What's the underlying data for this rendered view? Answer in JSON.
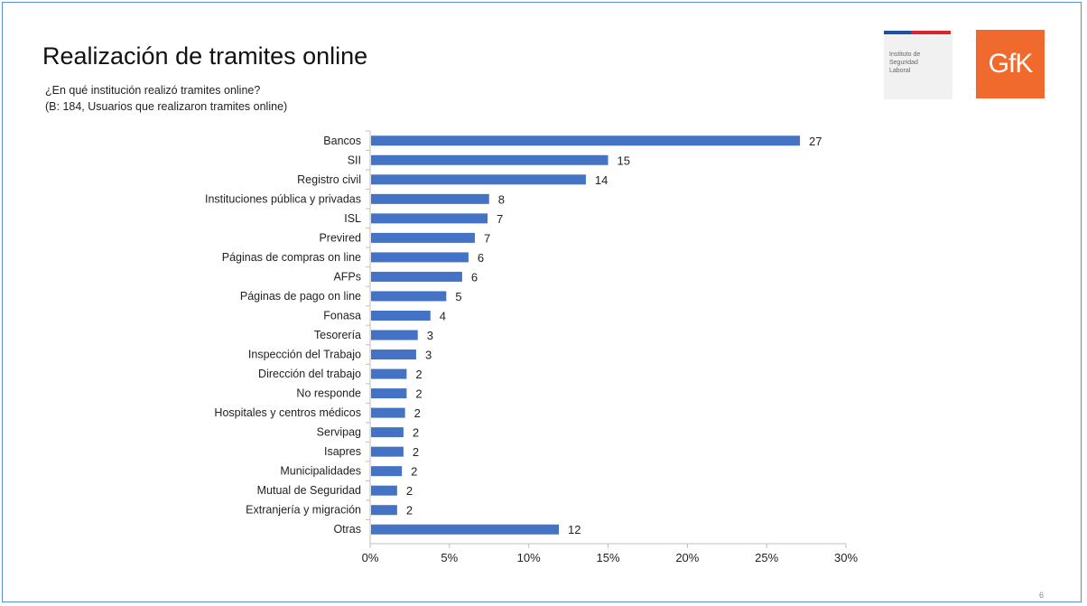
{
  "slide": {
    "title": "Realización de tramites online",
    "subtitle_line1": "¿En qué institución realizó tramites online?",
    "subtitle_line2": "(B: 184, Usuarios que realizaron tramites online)",
    "isl_logo_text": "Instituto de Seguridad Laboral",
    "gfk_logo_text": "GfK",
    "page_number": "6"
  },
  "colors": {
    "bar": "#4472c4",
    "axis": "#bfbfbf",
    "gfk_orange": "#ef6a2c",
    "gov_blue": "#1f4fa3",
    "gov_red": "#d8262e"
  },
  "chart_data": {
    "type": "bar",
    "orientation": "horizontal",
    "categories": [
      "Bancos",
      "SII",
      "Registro civil",
      "Instituciones pública y privadas",
      "ISL",
      "Previred",
      "Páginas de compras on line",
      "AFPs",
      "Páginas de pago on line",
      "Fonasa",
      "Tesorería",
      "Inspección del Trabajo",
      "Dirección del trabajo",
      "No responde",
      "Hospitales y centros médicos",
      "Servipag",
      "Isapres",
      "Municipalidades",
      "Mutual de Seguridad",
      "Extranjería y migración",
      "Otras"
    ],
    "values": [
      27.1,
      15,
      13.6,
      7.5,
      7.4,
      6.6,
      6.2,
      5.8,
      4.8,
      3.8,
      3,
      2.9,
      2.3,
      2.3,
      2.2,
      2.1,
      2.1,
      2,
      1.7,
      1.7,
      11.9
    ],
    "data_labels": [
      "27",
      "15",
      "14",
      "8",
      "7",
      "7",
      "6",
      "6",
      "5",
      "4",
      "3",
      "3",
      "2",
      "2",
      "2",
      "2",
      "2",
      "2",
      "2",
      "2",
      "12"
    ],
    "xlim": [
      0,
      30
    ],
    "xticks": [
      0,
      5,
      10,
      15,
      20,
      25,
      30
    ],
    "xtick_labels": [
      "0%",
      "5%",
      "10%",
      "15%",
      "20%",
      "25%",
      "30%"
    ],
    "grid": false,
    "legend": "none"
  }
}
